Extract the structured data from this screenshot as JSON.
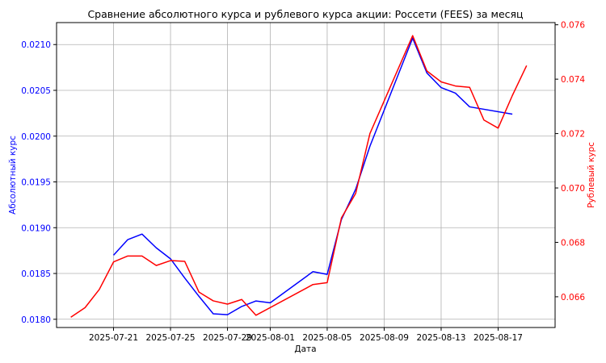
{
  "chart_data": {
    "type": "line",
    "title": "Сравнение абсолютного курса и рублевого курса акции: Россети (FEES) за месяц",
    "xlabel": "Дата",
    "ylabel_left": "Абсолютный курс",
    "ylabel_right": "Рублевый курс",
    "grid": true,
    "x_ticks": [
      "2025-07-21",
      "2025-07-25",
      "2025-07-29",
      "2025-08-01",
      "2025-08-05",
      "2025-08-09",
      "2025-08-13",
      "2025-08-17"
    ],
    "x_range": [
      "2025-07-17",
      "2025-08-21"
    ],
    "y_left_ticks": [
      "0.0180",
      "0.0185",
      "0.0190",
      "0.0195",
      "0.0200",
      "0.0205",
      "0.0210"
    ],
    "y_left_range": [
      0.01791,
      0.02124
    ],
    "y_right_ticks": [
      "0.066",
      "0.068",
      "0.070",
      "0.072",
      "0.074",
      "0.076"
    ],
    "y_right_range": [
      0.06487,
      0.07608
    ],
    "colors": {
      "left": "#0000ff",
      "right": "#ff0000"
    },
    "series": [
      {
        "axis": "left",
        "color": "#0000ff",
        "points": [
          [
            "2025-07-21",
            0.0187
          ],
          [
            "2025-07-22",
            0.01887
          ],
          [
            "2025-07-23",
            0.01893
          ],
          [
            "2025-07-24",
            0.01878
          ],
          [
            "2025-07-25",
            0.01866
          ],
          [
            "2025-07-26",
            0.01845
          ],
          [
            "2025-07-27",
            0.01825
          ],
          [
            "2025-07-28",
            0.01806
          ],
          [
            "2025-07-29",
            0.01805
          ],
          [
            "2025-07-30",
            0.01814
          ],
          [
            "2025-07-31",
            0.0182
          ],
          [
            "2025-08-01",
            0.01818
          ],
          [
            "2025-08-04",
            0.01852
          ],
          [
            "2025-08-05",
            0.01849
          ],
          [
            "2025-08-06",
            0.01909
          ],
          [
            "2025-08-07",
            0.01942
          ],
          [
            "2025-08-08",
            0.01989
          ],
          [
            "2025-08-11",
            0.02107
          ],
          [
            "2025-08-12",
            0.02069
          ],
          [
            "2025-08-13",
            0.02053
          ],
          [
            "2025-08-14",
            0.02047
          ],
          [
            "2025-08-15",
            0.02032
          ],
          [
            "2025-08-18",
            0.02024
          ]
        ]
      },
      {
        "axis": "right",
        "color": "#ff0000",
        "points": [
          [
            "2025-07-18",
            0.06525
          ],
          [
            "2025-07-19",
            0.0656
          ],
          [
            "2025-07-20",
            0.06627
          ],
          [
            "2025-07-21",
            0.06728
          ],
          [
            "2025-07-22",
            0.0675
          ],
          [
            "2025-07-23",
            0.0675
          ],
          [
            "2025-07-24",
            0.06715
          ],
          [
            "2025-07-25",
            0.06733
          ],
          [
            "2025-07-26",
            0.0673
          ],
          [
            "2025-07-27",
            0.06617
          ],
          [
            "2025-07-28",
            0.06585
          ],
          [
            "2025-07-29",
            0.06573
          ],
          [
            "2025-07-30",
            0.0659
          ],
          [
            "2025-07-31",
            0.06532
          ],
          [
            "2025-08-04",
            0.06645
          ],
          [
            "2025-08-05",
            0.06652
          ],
          [
            "2025-08-06",
            0.0689
          ],
          [
            "2025-08-07",
            0.0698
          ],
          [
            "2025-08-08",
            0.072
          ],
          [
            "2025-08-11",
            0.0756
          ],
          [
            "2025-08-12",
            0.0743
          ],
          [
            "2025-08-13",
            0.0739
          ],
          [
            "2025-08-14",
            0.07375
          ],
          [
            "2025-08-15",
            0.0737
          ],
          [
            "2025-08-16",
            0.0725
          ],
          [
            "2025-08-17",
            0.0722
          ],
          [
            "2025-08-18",
            0.0734
          ],
          [
            "2025-08-19",
            0.0745
          ]
        ]
      }
    ]
  }
}
